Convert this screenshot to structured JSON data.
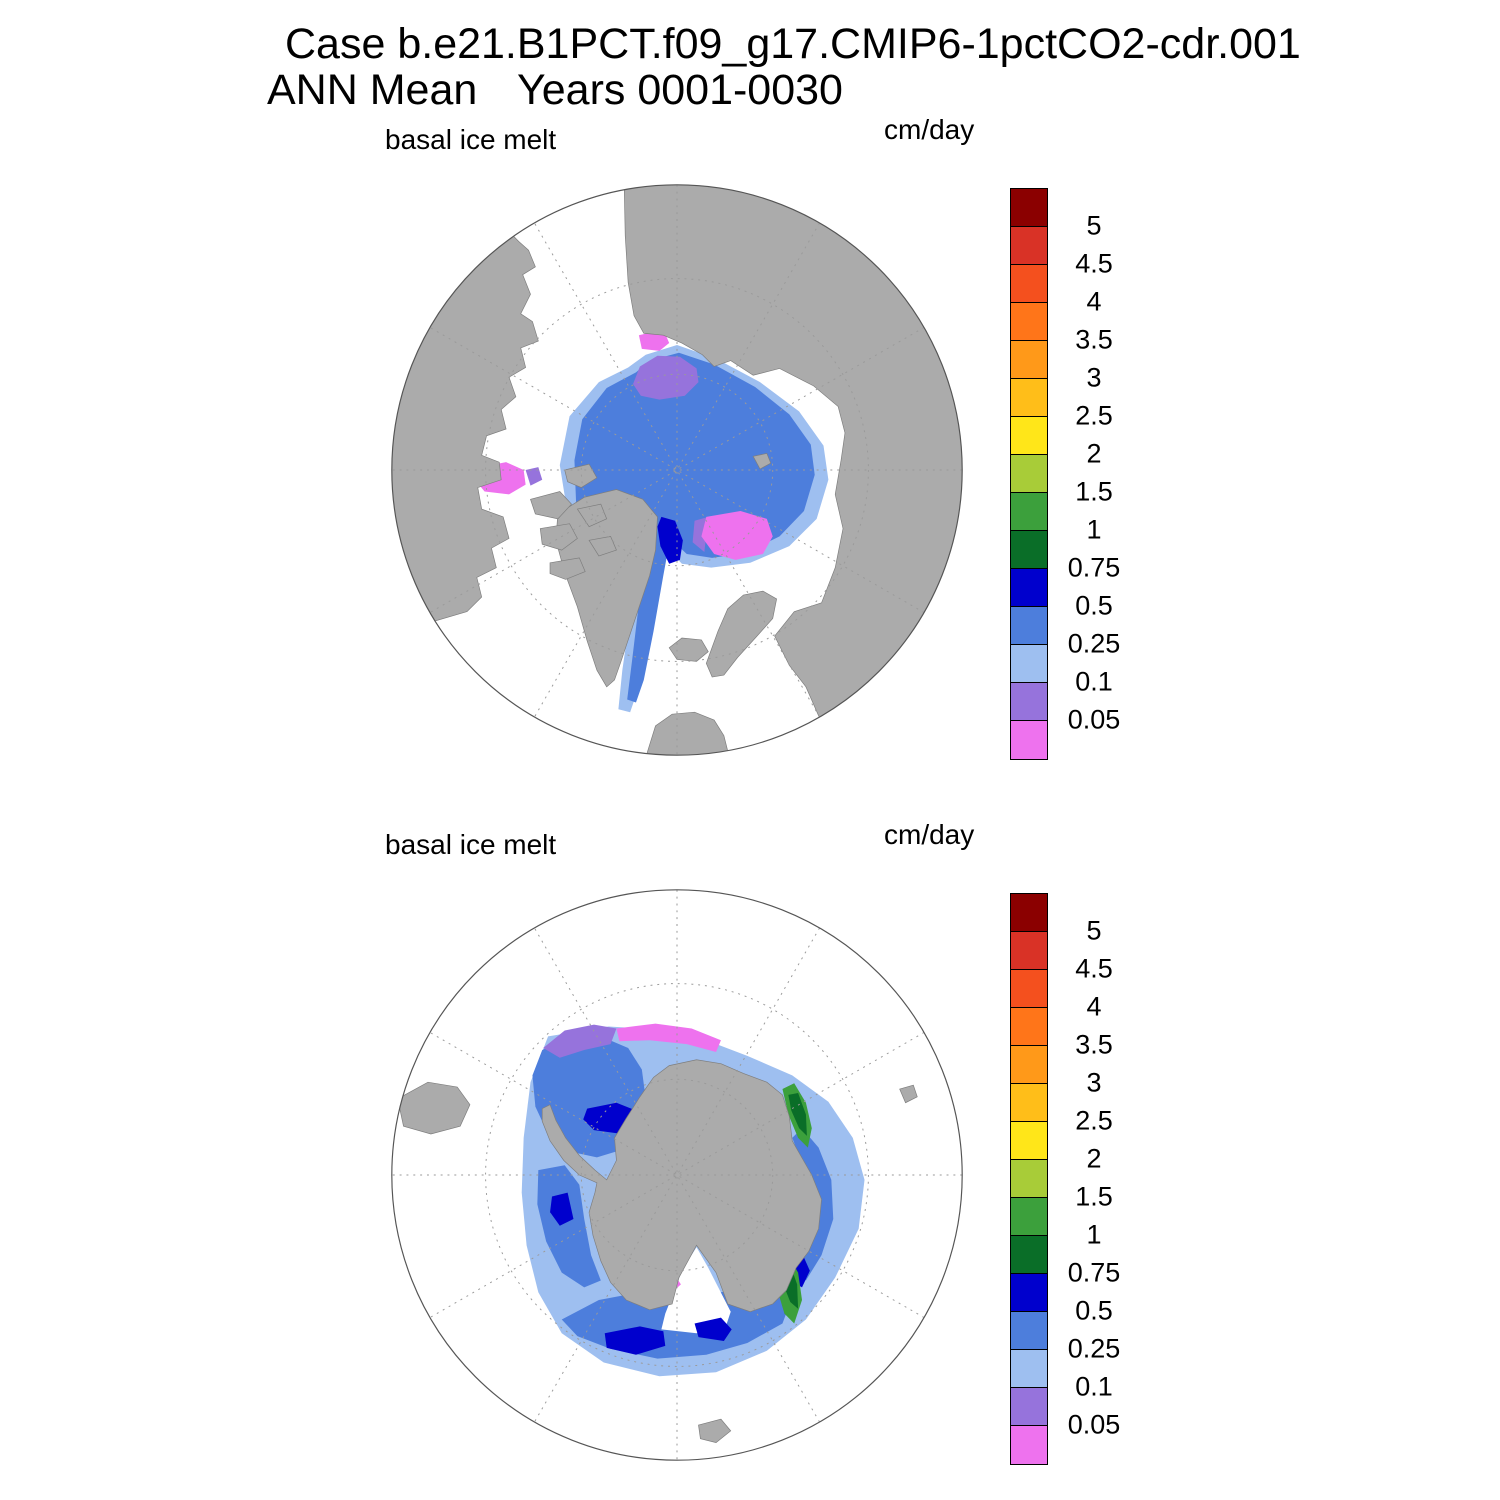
{
  "title": {
    "line1": "Case b.e21.B1PCT.f09_g17.CMIP6-1pctCO2-cdr.001",
    "line2_left": "ANN Mean",
    "line2_right": "Years 0001-0030"
  },
  "panels": {
    "north": {
      "field_label": "basal ice melt",
      "units_label": "cm/day",
      "projection": "north polar stereographic"
    },
    "south": {
      "field_label": "basal ice melt",
      "units_label": "cm/day",
      "projection": "south polar stereographic"
    }
  },
  "colorbar": {
    "tick_labels": [
      "5",
      "4.5",
      "4",
      "3.5",
      "3",
      "2.5",
      "2",
      "1.5",
      "1",
      "0.75",
      "0.5",
      "0.25",
      "0.1",
      "0.05"
    ],
    "colors_top_to_bottom": [
      "#8B0000",
      "#D93226",
      "#F4501E",
      "#FF7519",
      "#FF9919",
      "#FFBE19",
      "#FFE619",
      "#A8CC38",
      "#3CA03C",
      "#0A6E28",
      "#0000CD",
      "#4D7EDC",
      "#9EBFF0",
      "#9673DC",
      "#EE72EE"
    ]
  },
  "map_colors": {
    "land": "#ABABAB",
    "ocean": "#FFFFFF"
  },
  "chart_data": {
    "type": "heatmap",
    "title": "Case b.e21.B1PCT.f09_g17.CMIP6-1pctCO2-cdr.001",
    "subtitle": "ANN Mean    Years 0001-0030",
    "variable": "basal ice melt",
    "units": "cm/day",
    "legend_position": "right of each map",
    "contour_levels": [
      0.05,
      0.1,
      0.25,
      0.5,
      0.75,
      1,
      1.5,
      2,
      2.5,
      3,
      3.5,
      4,
      4.5,
      5
    ],
    "level_colors_low_to_high": [
      "#EE72EE",
      "#9673DC",
      "#9EBFF0",
      "#4D7EDC",
      "#0000CD",
      "#0A6E28",
      "#3CA03C",
      "#A8CC38",
      "#FFE619",
      "#FFBE19",
      "#FF9919",
      "#FF7519",
      "#F4501E",
      "#D93226",
      "#8B0000"
    ],
    "maps": [
      {
        "region": "Arctic",
        "projection": "north polar stereographic",
        "observations": [
          "Central Arctic Ocean basal ice melt mostly 0.25-0.5 cm/day (medium blue)",
          "Thin 0.5-0.75 cm/day (dark blue) band along the northeast Greenland coast",
          "0.1-0.25 cm/day (light blue) fringe and a melt tongue extending south through Fram Strait / Greenland Sea",
          "0.05-0.1 cm/day (purple) patch just off the central Siberian coast",
          "Below 0.05 cm/day (magenta) patches in the Barents/Kara sector, off the Canadian/Alaskan coast, and at the Siberian coast",
          "No values above 0.75 cm/day appear in this hemisphere"
        ]
      },
      {
        "region": "Antarctic",
        "projection": "south polar stereographic",
        "observations": [
          "Ring of basal ice melt 0.1-0.5 cm/day (light/medium blue) surrounding Antarctica",
          "0.5-0.75 cm/day (dark blue) cores in the Weddell Sea, along the western coast and in the Ross Sea sector",
          "0.75-1.5 cm/day (green) slivers hugging the coast in the eastern and southeastern sectors",
          "0.05-0.1 cm/day (purple) and below 0.05 cm/day (magenta) fringes at the northern ice edge of the Weddell sector",
          "White wedge with no shading at the Ross Ice Shelf embayment"
        ]
      }
    ]
  }
}
